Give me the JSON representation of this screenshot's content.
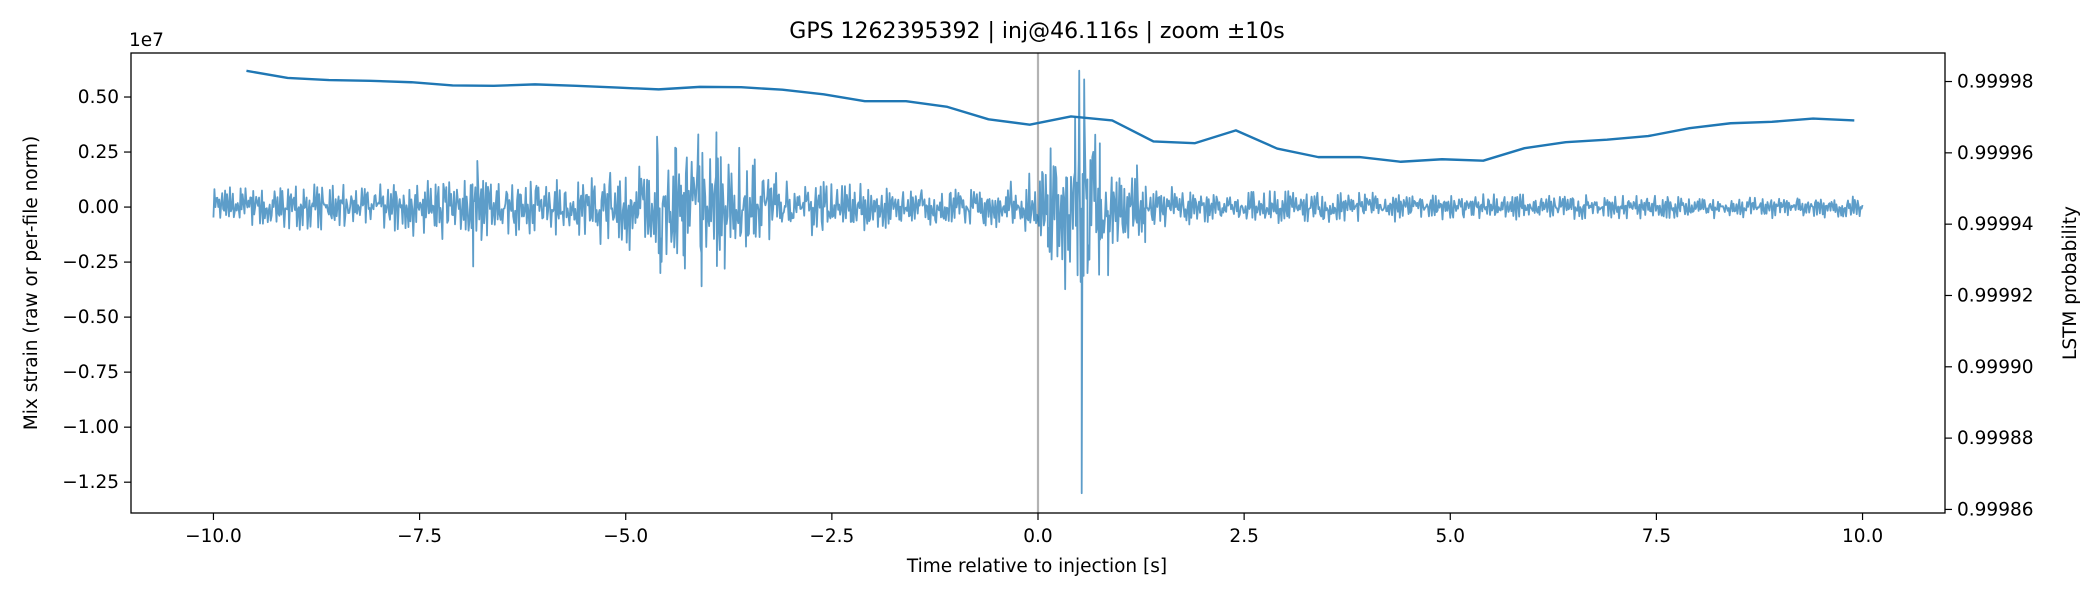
{
  "chart_data": {
    "type": "line",
    "title": "GPS 1262395392 | inj@46.116s | zoom ±10s",
    "xlabel": "Time relative to injection [s]",
    "ylabel_left": "Mix strain (raw or per-file norm)",
    "ylabel_right": "LSTM probability",
    "offset_label": "1e7",
    "xlim": [
      -11,
      11
    ],
    "ylim_left": [
      -13.9,
      7.0
    ],
    "ylim_right": [
      0.999859,
      0.999988
    ],
    "x_ticks": [
      -10.0,
      -7.5,
      -5.0,
      -2.5,
      0.0,
      2.5,
      5.0,
      7.5,
      10.0
    ],
    "x_tick_labels": [
      "−10.0",
      "−7.5",
      "−5.0",
      "−2.5",
      "0.0",
      "2.5",
      "5.0",
      "7.5",
      "10.0"
    ],
    "y_left_ticks": [
      0.5,
      0.25,
      0.0,
      -0.25,
      -0.5,
      -0.75,
      -1.0,
      -1.25
    ],
    "y_left_tick_labels": [
      "0.50",
      "0.25",
      "0.00",
      "−0.25",
      "−0.50",
      "−0.75",
      "−1.00",
      "−1.25"
    ],
    "y_right_ticks": [
      0.99998,
      0.99996,
      0.99994,
      0.99992,
      0.9999,
      0.99988,
      0.99986
    ],
    "y_right_tick_labels": [
      "0.99998",
      "0.99996",
      "0.99994",
      "0.99992",
      "0.99990",
      "0.99988",
      "0.99986"
    ],
    "vline_x": 0.0,
    "grid": false,
    "colors": {
      "strain": "#1f77b4",
      "probability": "#1f77b4",
      "vline": "#999999"
    },
    "series": [
      {
        "axis": "left",
        "kind": "strain_envelope",
        "x_range": [
          -10.0,
          10.0
        ],
        "envelope_x": [
          -10.0,
          -9.0,
          -8.0,
          -7.0,
          -6.0,
          -5.0,
          -4.5,
          -4.0,
          -3.5,
          -3.0,
          -2.5,
          -2.0,
          -1.5,
          -1.0,
          -0.5,
          0.0,
          0.5,
          1.0,
          1.5,
          2.0,
          3.0,
          4.0,
          5.0,
          6.0,
          7.0,
          8.0,
          9.0,
          10.0
        ],
        "envelope_y": [
          0.8,
          0.9,
          0.95,
          1.3,
          1.1,
          1.6,
          2.6,
          2.5,
          2.2,
          1.4,
          1.0,
          0.9,
          0.8,
          0.8,
          0.8,
          1.5,
          5.0,
          1.4,
          0.8,
          0.7,
          0.7,
          0.6,
          0.5,
          0.5,
          0.5,
          0.45,
          0.45,
          0.45
        ],
        "spikes": [
          {
            "x": -6.88,
            "y": 1.0
          },
          {
            "x": -6.85,
            "y": -2.7
          },
          {
            "x": -6.8,
            "y": 2.1
          },
          {
            "x": -6.75,
            "y": -1.5
          },
          {
            "x": -4.62,
            "y": 3.2
          },
          {
            "x": -4.58,
            "y": -3.0
          },
          {
            "x": -4.4,
            "y": 2.7
          },
          {
            "x": -4.3,
            "y": -2.2
          },
          {
            "x": -4.12,
            "y": 3.3
          },
          {
            "x": -4.08,
            "y": -3.6
          },
          {
            "x": -3.9,
            "y": 3.4
          },
          {
            "x": -3.8,
            "y": -2.8
          },
          {
            "x": 0.05,
            "y": 1.6
          },
          {
            "x": 0.12,
            "y": -1.8
          },
          {
            "x": 0.45,
            "y": 4.1
          },
          {
            "x": 0.48,
            "y": -3.1
          },
          {
            "x": 0.5,
            "y": 6.2
          },
          {
            "x": 0.53,
            "y": -13.0
          },
          {
            "x": 0.56,
            "y": 5.8
          },
          {
            "x": 0.6,
            "y": -3.0
          },
          {
            "x": 0.75,
            "y": 2.9
          },
          {
            "x": 0.85,
            "y": -3.1
          },
          {
            "x": 1.2,
            "y": 1.9
          },
          {
            "x": 1.3,
            "y": -1.6
          }
        ]
      },
      {
        "axis": "right",
        "kind": "line",
        "x": [
          -9.6,
          -9.1,
          -8.6,
          -8.1,
          -7.6,
          -7.1,
          -6.6,
          -6.1,
          -5.6,
          -5.1,
          -4.6,
          -4.1,
          -3.6,
          -3.1,
          -2.6,
          -2.1,
          -1.6,
          -1.1,
          -0.6,
          -0.1,
          0.4,
          0.9,
          1.4,
          1.9,
          2.4,
          2.9,
          3.4,
          3.9,
          4.4,
          4.9,
          5.4,
          5.9,
          6.4,
          6.9,
          7.4,
          7.9,
          8.4,
          8.9,
          9.4,
          9.9
        ],
        "y": [
          0.999983,
          0.999981,
          0.9999804,
          0.9999802,
          0.9999798,
          0.9999789,
          0.9999788,
          0.9999792,
          0.9999788,
          0.9999783,
          0.9999778,
          0.9999785,
          0.9999784,
          0.9999777,
          0.9999764,
          0.9999745,
          0.9999745,
          0.9999729,
          0.9999694,
          0.9999679,
          0.9999702,
          0.9999691,
          0.9999632,
          0.9999627,
          0.9999663,
          0.9999612,
          0.9999588,
          0.9999588,
          0.9999575,
          0.9999582,
          0.9999578,
          0.9999613,
          0.999963,
          0.9999637,
          0.9999647,
          0.9999669,
          0.9999683,
          0.9999687,
          0.9999696,
          0.9999691
        ]
      }
    ]
  }
}
